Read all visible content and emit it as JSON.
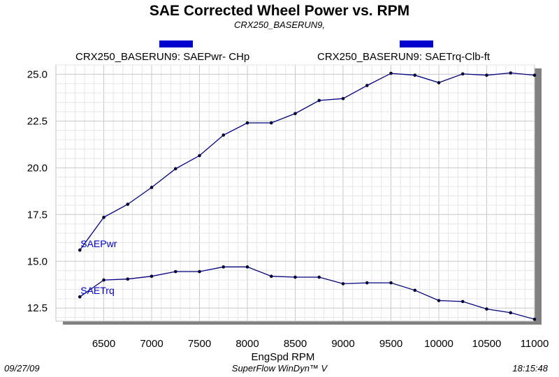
{
  "header": {
    "title": "SAE Corrected Wheel Power vs. RPM",
    "subtitle": "CRX250_BASERUN9,"
  },
  "legend": [
    {
      "label": "CRX250_BASERUN9: SAEPwr- CHp",
      "color": "#0000cc"
    },
    {
      "label": "CRX250_BASERUN9: SAETrq-Clb-ft",
      "color": "#0000cc"
    }
  ],
  "footer": {
    "date": "09/27/09",
    "software": "SuperFlow WinDyn™ V",
    "time": "18:15:48"
  },
  "chart_data": {
    "type": "line",
    "title": "SAE Corrected Wheel Power vs. RPM",
    "subtitle": "CRX250_BASERUN9,",
    "xlabel": "EngSpd  RPM",
    "ylabel": "",
    "xlim": [
      6000,
      11000
    ],
    "ylim": [
      11.8,
      25.5
    ],
    "xticks": [
      6500,
      7000,
      7500,
      8000,
      8500,
      9000,
      9500,
      10000,
      10500,
      11000
    ],
    "yticks": [
      12.5,
      15.0,
      17.5,
      20.0,
      22.5,
      25.0
    ],
    "ytick_labels": [
      "12.5",
      "15.0",
      "17.5",
      "20.0",
      "22.5",
      "25.0"
    ],
    "grid": true,
    "series": [
      {
        "name": "SAEPwr",
        "color": "#000080",
        "x": [
          6250,
          6500,
          6750,
          7000,
          7250,
          7500,
          7750,
          8000,
          8250,
          8500,
          8750,
          9000,
          9250,
          9500,
          9750,
          10000,
          10250,
          10500,
          10750,
          11000
        ],
        "values": [
          15.6,
          17.35,
          18.05,
          18.95,
          19.95,
          20.65,
          21.75,
          22.4,
          22.4,
          22.9,
          23.6,
          23.7,
          24.4,
          25.05,
          24.95,
          24.55,
          25.02,
          24.95,
          25.07,
          24.95
        ]
      },
      {
        "name": "SAETrq",
        "color": "#000080",
        "x": [
          6250,
          6500,
          6750,
          7000,
          7250,
          7500,
          7750,
          8000,
          8250,
          8500,
          8750,
          9000,
          9250,
          9500,
          9750,
          10000,
          10250,
          10500,
          10750,
          11000
        ],
        "values": [
          13.1,
          14.0,
          14.05,
          14.2,
          14.45,
          14.45,
          14.7,
          14.7,
          14.2,
          14.15,
          14.15,
          13.8,
          13.85,
          13.85,
          13.45,
          12.9,
          12.85,
          12.45,
          12.25,
          11.9
        ]
      }
    ]
  }
}
